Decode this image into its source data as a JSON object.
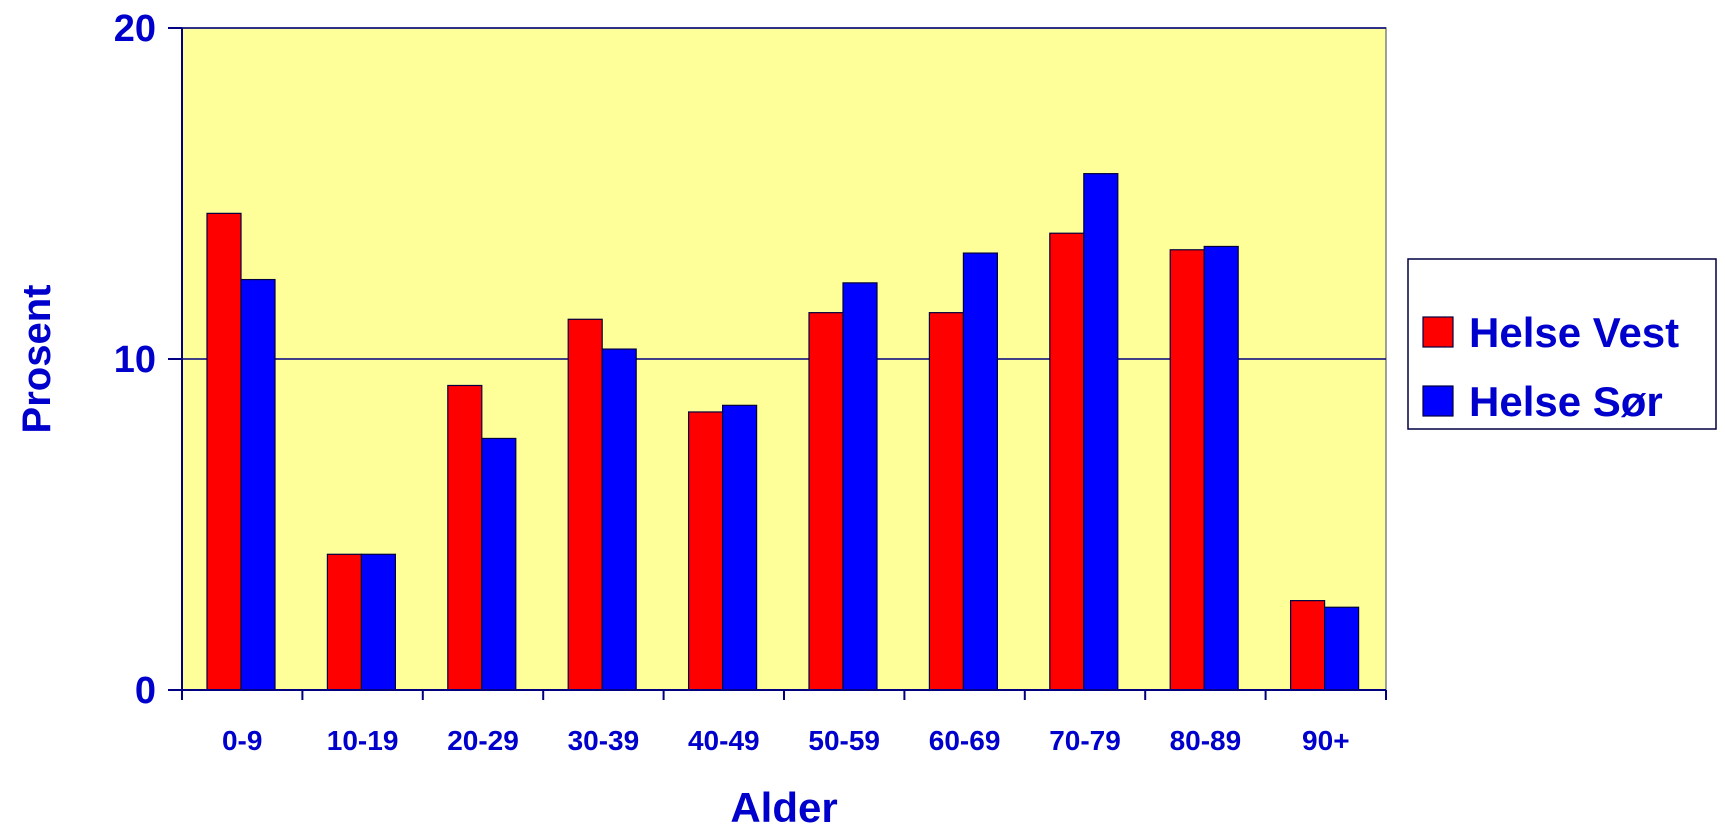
{
  "chart_data": {
    "type": "bar",
    "title": "",
    "xlabel": "Alder",
    "ylabel": "Prosent",
    "ylim": [
      0,
      20
    ],
    "yticks": [
      0,
      10,
      20
    ],
    "grid": true,
    "legend_position": "right",
    "categories": [
      "0-9",
      "10-19",
      "20-29",
      "30-39",
      "40-49",
      "50-59",
      "60-69",
      "70-79",
      "80-89",
      "90+"
    ],
    "series": [
      {
        "name": "Helse Vest",
        "color": "#ff0000",
        "values": [
          14.4,
          4.1,
          9.2,
          11.2,
          8.4,
          11.4,
          11.4,
          13.8,
          13.3,
          2.7
        ]
      },
      {
        "name": "Helse Sør",
        "color": "#0000ff",
        "values": [
          12.4,
          4.1,
          7.6,
          10.3,
          8.6,
          12.3,
          13.2,
          15.6,
          13.4,
          2.5
        ]
      }
    ],
    "colors": {
      "plot_background": "#ffff99",
      "text": "#0000cc",
      "axis": "#000080",
      "gridline": "#000080"
    }
  }
}
